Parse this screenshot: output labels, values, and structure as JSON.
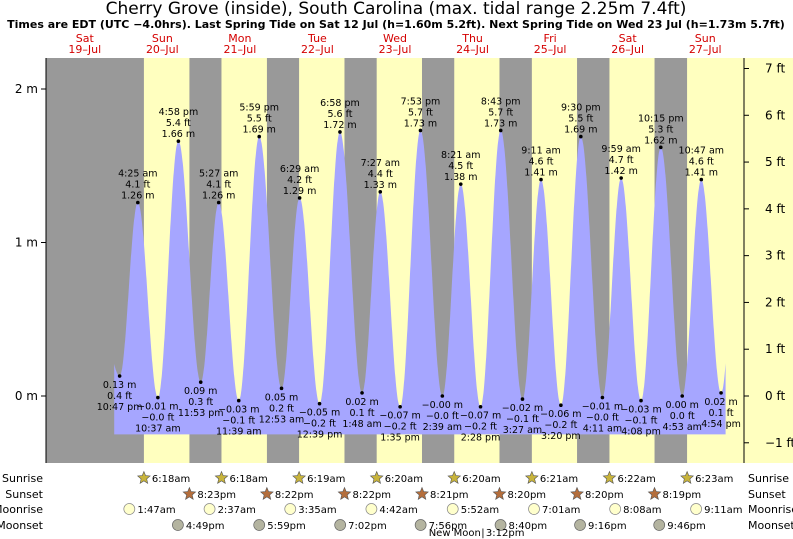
{
  "header": {
    "title": "Cherry Grove (inside), South Carolina (max. tidal range 2.25m 7.4ft)",
    "subtitle": "Times are EDT (UTC −4.0hrs). Last Spring Tide on Sat 12 Jul (h=1.60m 5.2ft). Next Spring Tide on Wed 23 Jul (h=1.73m 5.7ft)"
  },
  "colors": {
    "night": "#999999",
    "day": "#ffffbf",
    "water": "#a6a6ff",
    "day_label": "#d40000",
    "sun": "#c8b43c",
    "sunset": "#b46e3c",
    "moonrise": "#ffffcc",
    "moonset": "#b4b4a0"
  },
  "chart_data": {
    "type": "area",
    "title": "Cherry Grove (inside), South Carolina (max. tidal range 2.25m 7.4ft)",
    "y_axis_left": {
      "unit": "m",
      "range": [
        -0.43,
        2.2
      ],
      "ticks": [
        "0 m",
        "1 m",
        "2 m"
      ]
    },
    "y_axis_right": {
      "unit": "ft",
      "ticks": [
        "−1 ft",
        "0 ft",
        "1 ft",
        "2 ft",
        "3 ft",
        "4 ft",
        "5 ft",
        "6 ft",
        "7 ft"
      ]
    },
    "days": [
      {
        "dow": "Sat",
        "date": "19–Jul"
      },
      {
        "dow": "Sun",
        "date": "20–Jul"
      },
      {
        "dow": "Mon",
        "date": "21–Jul"
      },
      {
        "dow": "Tue",
        "date": "22–Jul"
      },
      {
        "dow": "Wed",
        "date": "23–Jul"
      },
      {
        "dow": "Thu",
        "date": "24–Jul"
      },
      {
        "dow": "Fri",
        "date": "25–Jul"
      },
      {
        "dow": "Sat",
        "date": "26–Jul"
      },
      {
        "dow": "Sun",
        "date": "27–Jul"
      }
    ],
    "tides": [
      {
        "type": "low",
        "day": 0,
        "time": "10:47 pm",
        "m": 0.13,
        "m_text": "0.13 m",
        "ft_text": "0.4 ft"
      },
      {
        "type": "high",
        "day": 1,
        "time": "4:25 am",
        "m": 1.26,
        "m_text": "1.26 m",
        "ft_text": "4.1 ft"
      },
      {
        "type": "low",
        "day": 1,
        "time": "10:37 am",
        "m": -0.01,
        "m_text": "−0.01 m",
        "ft_text": "−0.0 ft"
      },
      {
        "type": "high",
        "day": 1,
        "time": "4:58 pm",
        "m": 1.66,
        "m_text": "1.66 m",
        "ft_text": "5.4 ft"
      },
      {
        "type": "low",
        "day": 1,
        "time": "11:53 pm",
        "m": 0.09,
        "m_text": "0.09 m",
        "ft_text": "0.3 ft"
      },
      {
        "type": "high",
        "day": 2,
        "time": "5:27 am",
        "m": 1.26,
        "m_text": "1.26 m",
        "ft_text": "4.1 ft"
      },
      {
        "type": "low",
        "day": 2,
        "time": "11:39 am",
        "m": -0.03,
        "m_text": "−0.03 m",
        "ft_text": "−0.1 ft"
      },
      {
        "type": "high",
        "day": 2,
        "time": "5:59 pm",
        "m": 1.69,
        "m_text": "1.69 m",
        "ft_text": "5.5 ft"
      },
      {
        "type": "low",
        "day": 3,
        "time": "12:53 am",
        "m": 0.05,
        "m_text": "0.05 m",
        "ft_text": "0.2 ft"
      },
      {
        "type": "high",
        "day": 3,
        "time": "6:29 am",
        "m": 1.29,
        "m_text": "1.29 m",
        "ft_text": "4.2 ft"
      },
      {
        "type": "low",
        "day": 3,
        "time": "12:39 pm",
        "m": -0.05,
        "m_text": "−0.05 m",
        "ft_text": "−0.2 ft"
      },
      {
        "type": "high",
        "day": 3,
        "time": "6:58 pm",
        "m": 1.72,
        "m_text": "1.72 m",
        "ft_text": "5.6 ft"
      },
      {
        "type": "low",
        "day": 4,
        "time": "1:48 am",
        "m": 0.02,
        "m_text": "0.02 m",
        "ft_text": "0.1 ft"
      },
      {
        "type": "high",
        "day": 4,
        "time": "7:27 am",
        "m": 1.33,
        "m_text": "1.33 m",
        "ft_text": "4.4 ft"
      },
      {
        "type": "low",
        "day": 4,
        "time": "1:35 pm",
        "m": -0.07,
        "m_text": "−0.07 m",
        "ft_text": "−0.2 ft"
      },
      {
        "type": "high",
        "day": 4,
        "time": "7:53 pm",
        "m": 1.73,
        "m_text": "1.73 m",
        "ft_text": "5.7 ft"
      },
      {
        "type": "low",
        "day": 5,
        "time": "2:39 am",
        "m": -0.0,
        "m_text": "−0.00 m",
        "ft_text": "−0.0 ft"
      },
      {
        "type": "high",
        "day": 5,
        "time": "8:21 am",
        "m": 1.38,
        "m_text": "1.38 m",
        "ft_text": "4.5 ft"
      },
      {
        "type": "low",
        "day": 5,
        "time": "2:28 pm",
        "m": -0.07,
        "m_text": "−0.07 m",
        "ft_text": "−0.2 ft"
      },
      {
        "type": "high",
        "day": 5,
        "time": "8:43 pm",
        "m": 1.73,
        "m_text": "1.73 m",
        "ft_text": "5.7 ft"
      },
      {
        "type": "low",
        "day": 6,
        "time": "3:27 am",
        "m": -0.02,
        "m_text": "−0.02 m",
        "ft_text": "−0.1 ft"
      },
      {
        "type": "high",
        "day": 6,
        "time": "9:11 am",
        "m": 1.41,
        "m_text": "1.41 m",
        "ft_text": "4.6 ft"
      },
      {
        "type": "low",
        "day": 6,
        "time": "3:20 pm",
        "m": -0.06,
        "m_text": "−0.06 m",
        "ft_text": "−0.2 ft"
      },
      {
        "type": "high",
        "day": 6,
        "time": "9:30 pm",
        "m": 1.69,
        "m_text": "1.69 m",
        "ft_text": "5.5 ft"
      },
      {
        "type": "low",
        "day": 7,
        "time": "4:11 am",
        "m": -0.01,
        "m_text": "−0.01 m",
        "ft_text": "−0.0 ft"
      },
      {
        "type": "high",
        "day": 7,
        "time": "9:59 am",
        "m": 1.42,
        "m_text": "1.42 m",
        "ft_text": "4.7 ft"
      },
      {
        "type": "low",
        "day": 7,
        "time": "4:08 pm",
        "m": -0.03,
        "m_text": "−0.03 m",
        "ft_text": "−0.1 ft"
      },
      {
        "type": "high",
        "day": 7,
        "time": "10:15 pm",
        "m": 1.62,
        "m_text": "1.62 m",
        "ft_text": "5.3 ft"
      },
      {
        "type": "low",
        "day": 8,
        "time": "4:53 am",
        "m": 0.0,
        "m_text": "0.00 m",
        "ft_text": "0.0 ft"
      },
      {
        "type": "high",
        "day": 8,
        "time": "10:47 am",
        "m": 1.41,
        "m_text": "1.41 m",
        "ft_text": "4.6 ft"
      },
      {
        "type": "low",
        "day": 8,
        "time": "4:54 pm",
        "m": 0.02,
        "m_text": "0.02 m",
        "ft_text": "0.1 ft"
      }
    ],
    "sun": [
      {
        "day": 1,
        "sunrise": "6:18am",
        "sunset": "8:23pm"
      },
      {
        "day": 2,
        "sunrise": "6:18am",
        "sunset": "8:22pm"
      },
      {
        "day": 3,
        "sunrise": "6:19am",
        "sunset": "8:22pm"
      },
      {
        "day": 4,
        "sunrise": "6:20am",
        "sunset": "8:21pm"
      },
      {
        "day": 5,
        "sunrise": "6:20am",
        "sunset": "8:20pm"
      },
      {
        "day": 6,
        "sunrise": "6:21am",
        "sunset": "8:20pm"
      },
      {
        "day": 7,
        "sunrise": "6:22am",
        "sunset": "8:19pm"
      },
      {
        "day": 8,
        "sunrise": "6:23am",
        "sunset": ""
      }
    ],
    "moonrise": [
      {
        "day": 1,
        "time": "1:47am"
      },
      {
        "day": 2,
        "time": "2:37am"
      },
      {
        "day": 3,
        "time": "3:35am"
      },
      {
        "day": 4,
        "time": "4:42am"
      },
      {
        "day": 5,
        "time": "5:52am"
      },
      {
        "day": 6,
        "time": "7:01am"
      },
      {
        "day": 7,
        "time": "8:08am"
      },
      {
        "day": 8,
        "time": "9:11am"
      }
    ],
    "moonset": [
      {
        "day": 1,
        "time": "4:49pm"
      },
      {
        "day": 2,
        "time": "5:59pm"
      },
      {
        "day": 3,
        "time": "7:02pm"
      },
      {
        "day": 4,
        "time": "7:56pm"
      },
      {
        "day": 5,
        "time": "8:40pm"
      },
      {
        "day": 6,
        "time": "9:16pm"
      },
      {
        "day": 7,
        "time": "9:46pm"
      }
    ],
    "row_labels": {
      "sunrise": "Sunrise",
      "sunset": "Sunset",
      "moonrise": "Moonrise",
      "moonset": "Moonset"
    },
    "moon_phase": {
      "text": "New Moon",
      "time": "3:12pm",
      "day": 5
    }
  }
}
